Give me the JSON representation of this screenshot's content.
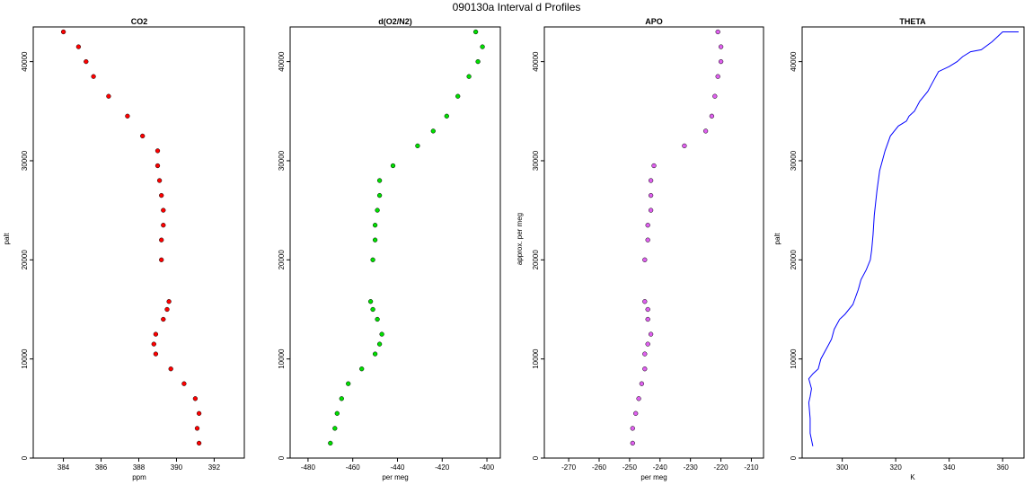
{
  "figure_title": "090130a   Interval d Profiles",
  "chart_data": [
    {
      "type": "scatter",
      "title": "CO2",
      "xlabel": "ppm",
      "ylabel": "palt",
      "xlim": [
        382.4,
        393.6
      ],
      "ylim": [
        0,
        43500
      ],
      "xticks": [
        384,
        386,
        388,
        390,
        392
      ],
      "yticks": [
        0,
        10000,
        20000,
        30000,
        40000
      ],
      "color": "#ff0000",
      "series": [
        {
          "x": [
            384.0,
            384.8,
            385.2,
            385.6,
            386.4,
            387.4,
            388.2,
            389.0,
            389.0,
            389.1,
            389.2,
            389.3,
            389.3,
            389.2,
            389.2,
            389.6,
            389.5,
            389.3,
            388.9,
            388.8,
            388.9,
            389.7,
            390.4,
            391.0,
            391.2,
            391.1,
            391.2
          ],
          "y": [
            43000,
            41500,
            40000,
            38500,
            36500,
            34500,
            32500,
            31000,
            29500,
            28000,
            26500,
            25000,
            23500,
            22000,
            20000,
            15800,
            15000,
            14000,
            12500,
            11500,
            10500,
            9000,
            7500,
            6000,
            4500,
            3000,
            1500
          ]
        }
      ]
    },
    {
      "type": "scatter",
      "title": "d(O2/N2)",
      "xlabel": "per meg",
      "ylabel": "",
      "xlim": [
        -488,
        -394
      ],
      "ylim": [
        0,
        43500
      ],
      "xticks": [
        -480,
        -460,
        -440,
        -420,
        -400
      ],
      "yticks": [
        0,
        10000,
        20000,
        30000,
        40000
      ],
      "color": "#00e000",
      "series": [
        {
          "x": [
            -405,
            -402,
            -404,
            -408,
            -413,
            -418,
            -424,
            -431,
            -442,
            -448,
            -448,
            -449,
            -450,
            -450,
            -451,
            -452,
            -451,
            -449,
            -447,
            -448,
            -450,
            -456,
            -462,
            -465,
            -467,
            -468,
            -470
          ],
          "y": [
            43000,
            41500,
            40000,
            38500,
            36500,
            34500,
            33000,
            31500,
            29500,
            28000,
            26500,
            25000,
            23500,
            22000,
            20000,
            15800,
            15000,
            14000,
            12500,
            11500,
            10500,
            9000,
            7500,
            6000,
            4500,
            3000,
            1500
          ]
        }
      ]
    },
    {
      "type": "scatter",
      "title": "APO",
      "xlabel": "per meg",
      "ylabel": "approx. per meg",
      "xlim": [
        -278,
        -206
      ],
      "ylim": [
        0,
        43500
      ],
      "xticks": [
        -270,
        -260,
        -250,
        -240,
        -230,
        -220,
        -210
      ],
      "yticks": [
        0,
        10000,
        20000,
        30000,
        40000
      ],
      "color": "#e060f0",
      "series": [
        {
          "x": [
            -221,
            -220,
            -220,
            -221,
            -222,
            -223,
            -225,
            -232,
            -242,
            -243,
            -243,
            -243,
            -244,
            -244,
            -245,
            -245,
            -244,
            -244,
            -243,
            -244,
            -245,
            -245,
            -246,
            -247,
            -248,
            -249,
            -249
          ],
          "y": [
            43000,
            41500,
            40000,
            38500,
            36500,
            34500,
            33000,
            31500,
            29500,
            28000,
            26500,
            25000,
            23500,
            22000,
            20000,
            15800,
            15000,
            14000,
            12500,
            11500,
            10500,
            9000,
            7500,
            6000,
            4500,
            3000,
            1500
          ]
        }
      ]
    },
    {
      "type": "line",
      "title": "THETA",
      "xlabel": "K",
      "ylabel": "palt",
      "xlim": [
        285,
        368
      ],
      "ylim": [
        0,
        43500
      ],
      "xticks": [
        300,
        320,
        340,
        360
      ],
      "yticks": [
        0,
        10000,
        20000,
        30000,
        40000
      ],
      "color": "#0000ff",
      "series": [
        {
          "x": [
            289,
            288,
            288,
            287.5,
            288,
            288.5,
            287.5,
            289,
            291,
            292,
            295,
            296,
            297,
            299,
            301,
            304,
            306,
            307,
            309,
            310.5,
            311,
            311.5,
            312,
            313,
            314,
            316,
            318,
            321,
            324,
            325,
            327,
            329,
            332,
            334,
            336,
            340,
            343,
            345,
            348,
            352,
            356,
            360,
            366
          ],
          "y": [
            1200,
            2500,
            4000,
            5600,
            6200,
            7000,
            8000,
            8500,
            9000,
            10000,
            11500,
            12000,
            13000,
            14000,
            14500,
            15500,
            17000,
            18000,
            19000,
            20000,
            21000,
            22500,
            24500,
            27000,
            29000,
            31000,
            32500,
            33500,
            34000,
            34500,
            35000,
            36000,
            37000,
            38000,
            39000,
            39500,
            40000,
            40500,
            41000,
            41200,
            42000,
            43000,
            43000
          ]
        }
      ]
    }
  ]
}
